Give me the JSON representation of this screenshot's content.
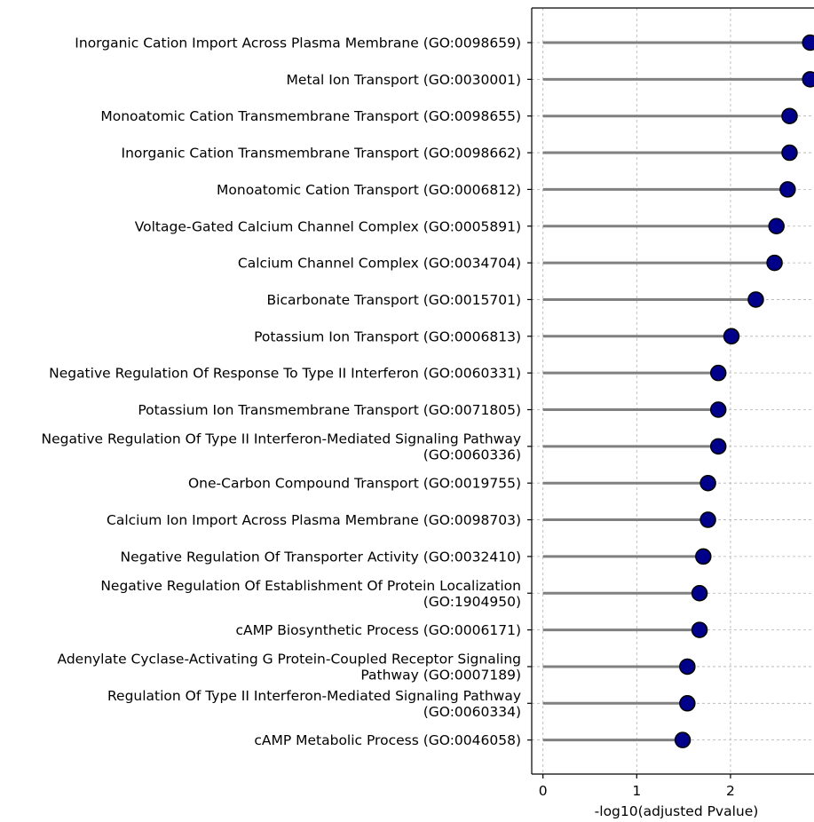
{
  "chart_data": {
    "type": "lollipop",
    "title": "",
    "xlabel": "-log10(adjusted Pvalue)",
    "ylabel": "",
    "xlim": [
      -0.12,
      2.9
    ],
    "xticks": [
      0,
      1,
      2
    ],
    "grid": true,
    "colors": {
      "stem": "#808080",
      "marker_fill": "#00008b",
      "marker_edge": "#000000",
      "grid": "#b0b0b0",
      "axis": "#000000"
    },
    "categories": [
      [
        "Inorganic Cation Import Across Plasma Membrane (GO:0098659)"
      ],
      [
        "Metal Ion Transport (GO:0030001)"
      ],
      [
        "Monoatomic Cation Transmembrane Transport (GO:0098655)"
      ],
      [
        "Inorganic Cation Transmembrane Transport (GO:0098662)"
      ],
      [
        "Monoatomic Cation Transport (GO:0006812)"
      ],
      [
        "Voltage-Gated Calcium Channel Complex (GO:0005891)"
      ],
      [
        "Calcium Channel Complex (GO:0034704)"
      ],
      [
        "Bicarbonate Transport (GO:0015701)"
      ],
      [
        "Potassium Ion Transport (GO:0006813)"
      ],
      [
        "Negative Regulation Of Response To Type II Interferon (GO:0060331)"
      ],
      [
        "Potassium Ion Transmembrane Transport (GO:0071805)"
      ],
      [
        "Negative Regulation Of Type II Interferon-Mediated Signaling Pathway",
        "(GO:0060336)"
      ],
      [
        "One-Carbon Compound Transport (GO:0019755)"
      ],
      [
        "Calcium Ion Import Across Plasma Membrane (GO:0098703)"
      ],
      [
        "Negative Regulation Of Transporter Activity (GO:0032410)"
      ],
      [
        "Negative Regulation Of Establishment Of Protein Localization",
        "(GO:1904950)"
      ],
      [
        "cAMP Biosynthetic Process (GO:0006171)"
      ],
      [
        "Adenylate Cyclase-Activating G Protein-Coupled Receptor Signaling",
        "Pathway (GO:0007189)"
      ],
      [
        "Regulation Of Type II Interferon-Mediated Signaling Pathway",
        "(GO:0060334)"
      ],
      [
        "cAMP Metabolic Process (GO:0046058)"
      ]
    ],
    "values": [
      2.85,
      2.85,
      2.63,
      2.63,
      2.61,
      2.49,
      2.47,
      2.27,
      2.01,
      1.87,
      1.87,
      1.87,
      1.76,
      1.76,
      1.71,
      1.67,
      1.67,
      1.54,
      1.54,
      1.49
    ]
  }
}
